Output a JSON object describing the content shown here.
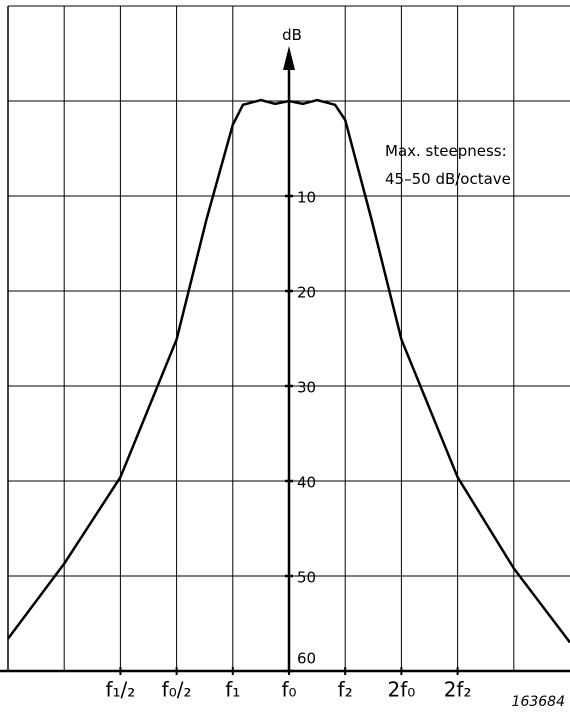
{
  "chart_data": {
    "type": "line",
    "y_label": "dB",
    "annotations": [
      "Max. steepness:",
      "45–50 dB/octave"
    ],
    "figure_number": "163684",
    "x": [
      -5,
      -4,
      -3,
      -2,
      -1.47,
      -1,
      -0.82,
      -0.5,
      -0.25,
      0,
      0.25,
      0.5,
      0.82,
      1,
      1.47,
      2,
      3,
      4,
      5
    ],
    "values": [
      56.6,
      48.7,
      39.6,
      25.1,
      12.5,
      2.5,
      0.4,
      -0.1,
      0.3,
      0,
      0.3,
      -0.1,
      0.4,
      2,
      12.5,
      25.1,
      39.6,
      49.2,
      57
    ],
    "color": "#000000",
    "xlim": [
      -5,
      5
    ],
    "ylim": [
      -10,
      60
    ],
    "y_inverted": true,
    "xticks": [
      {
        "value": -3,
        "label": "f₁/₂"
      },
      {
        "value": -2,
        "label": "f₀/₂"
      },
      {
        "value": -1,
        "label": "f₁"
      },
      {
        "value": 0,
        "label": "f₀"
      },
      {
        "value": 1,
        "label": "f₂"
      },
      {
        "value": 2,
        "label": "2f₀"
      },
      {
        "value": 3,
        "label": "2f₂"
      }
    ],
    "xgrid": [
      -4,
      -3,
      -2,
      -1,
      1,
      2,
      3,
      4
    ],
    "yticks": [
      10,
      20,
      30,
      40,
      50,
      60
    ],
    "ygrid": [
      -10,
      0,
      10,
      20,
      30,
      40,
      50
    ],
    "grid": true
  }
}
